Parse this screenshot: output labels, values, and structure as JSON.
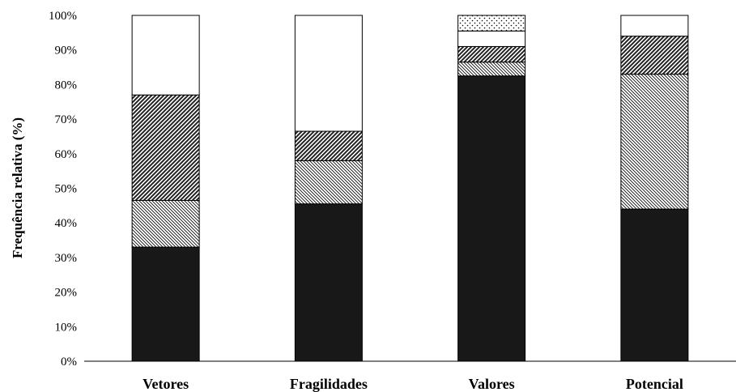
{
  "chart_data": {
    "type": "bar",
    "stacked": true,
    "title": "",
    "xlabel": "",
    "ylabel": "Frequência relativa (%)",
    "ylim": [
      0,
      100
    ],
    "yticks": [
      "0%",
      "10%",
      "20%",
      "30%",
      "40%",
      "50%",
      "60%",
      "70%",
      "80%",
      "90%",
      "100%"
    ],
    "categories": [
      "Vetores",
      "Fragilidades",
      "Valores",
      "Potencial"
    ],
    "grid": false,
    "legend": "none",
    "series": [
      {
        "pattern": "solid-black",
        "values": [
          33,
          45.5,
          82.5,
          44
        ]
      },
      {
        "pattern": "diagonal-fine-backslash",
        "values": [
          13.5,
          12.5,
          4,
          39
        ]
      },
      {
        "pattern": "diagonal-dense-slash",
        "values": [
          30.5,
          8.5,
          4.5,
          11
        ]
      },
      {
        "pattern": "plain-white",
        "values": [
          23,
          33.5,
          4.5,
          6
        ]
      },
      {
        "pattern": "dotted",
        "values": [
          0,
          0,
          4.5,
          0
        ]
      }
    ]
  }
}
